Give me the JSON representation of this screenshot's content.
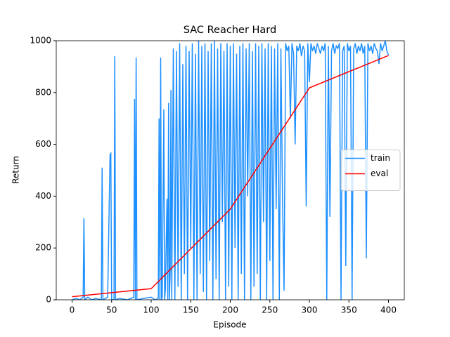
{
  "chart_data": {
    "type": "line",
    "title": "SAC Reacher Hard",
    "xlabel": "Episode",
    "ylabel": "Return",
    "xlim": [
      -20,
      420
    ],
    "xticks": [
      0,
      50,
      100,
      150,
      200,
      250,
      300,
      350,
      400
    ],
    "ylim": [
      0,
      1000
    ],
    "yticks": [
      0,
      200,
      400,
      600,
      800,
      1000
    ],
    "legend": "center right",
    "series": [
      {
        "name": "train",
        "color": "#1e90ff",
        "x": [
          0,
          5,
          10,
          14,
          15,
          16,
          20,
          25,
          30,
          37,
          38,
          39,
          45,
          48,
          49,
          50,
          53,
          54,
          55,
          60,
          70,
          78,
          79,
          80,
          81,
          82,
          90,
          100,
          105,
          109,
          110,
          111,
          112,
          113,
          114,
          116,
          117,
          118,
          120,
          121,
          122,
          123,
          124,
          125,
          126,
          128,
          130,
          132,
          134,
          136,
          138,
          140,
          142,
          144,
          146,
          148,
          150,
          152,
          154,
          156,
          158,
          160,
          162,
          164,
          166,
          168,
          170,
          172,
          174,
          176,
          178,
          180,
          182,
          184,
          186,
          188,
          190,
          192,
          194,
          196,
          198,
          200,
          202,
          204,
          206,
          208,
          210,
          212,
          214,
          216,
          218,
          220,
          222,
          224,
          226,
          228,
          230,
          232,
          234,
          236,
          238,
          240,
          242,
          244,
          246,
          248,
          250,
          252,
          254,
          256,
          258,
          260,
          262,
          264,
          266,
          268,
          270,
          272,
          274,
          276,
          278,
          280,
          282,
          284,
          286,
          288,
          290,
          292,
          294,
          296,
          298,
          300,
          302,
          304,
          306,
          308,
          310,
          312,
          314,
          316,
          318,
          320,
          322,
          324,
          326,
          328,
          330,
          332,
          334,
          336,
          338,
          340,
          342,
          344,
          346,
          348,
          350,
          352,
          354,
          356,
          358,
          360,
          362,
          364,
          366,
          368,
          370,
          372,
          374,
          376,
          378,
          380,
          382,
          384,
          386,
          388,
          390,
          392,
          394,
          396,
          398,
          400
        ],
        "values": [
          0,
          5,
          0,
          10,
          315,
          0,
          10,
          0,
          5,
          0,
          510,
          0,
          10,
          560,
          565,
          0,
          0,
          940,
          0,
          5,
          0,
          10,
          775,
          0,
          935,
          0,
          5,
          10,
          0,
          5,
          700,
          0,
          935,
          0,
          10,
          735,
          0,
          40,
          390,
          0,
          760,
          0,
          100,
          810,
          0,
          970,
          0,
          960,
          50,
          990,
          0,
          910,
          100,
          980,
          0,
          960,
          200,
          990,
          0,
          950,
          0,
          1000,
          100,
          980,
          30,
          990,
          0,
          960,
          150,
          990,
          0,
          1000,
          80,
          970,
          0,
          990,
          300,
          960,
          0,
          990,
          50,
          980,
          0,
          990,
          200,
          950,
          0,
          980,
          100,
          990,
          0,
          970,
          400,
          990,
          0,
          960,
          50,
          990,
          100,
          980,
          0,
          990,
          300,
          970,
          0,
          990,
          150,
          980,
          0,
          970,
          350,
          990,
          0,
          970,
          400,
          35,
          990,
          960,
          980,
          700,
          990,
          950,
          600,
          980,
          960,
          990,
          940,
          980,
          960,
          360,
          990,
          840,
          990,
          960,
          980,
          950,
          990,
          970,
          950,
          980,
          960,
          990,
          0,
          980,
          320,
          960,
          990,
          950,
          980,
          970,
          990,
          0,
          960,
          980,
          130,
          990,
          960,
          980,
          0,
          970,
          990,
          950,
          980,
          960,
          990,
          950,
          980,
          160,
          990,
          960,
          980,
          950,
          990,
          970,
          960,
          910,
          990,
          960,
          980,
          1000,
          960,
          945
        ]
      },
      {
        "name": "eval",
        "color": "#ff0000",
        "x": [
          0,
          100,
          200,
          300,
          400
        ],
        "values": [
          12,
          43,
          350,
          818,
          943
        ]
      }
    ]
  }
}
